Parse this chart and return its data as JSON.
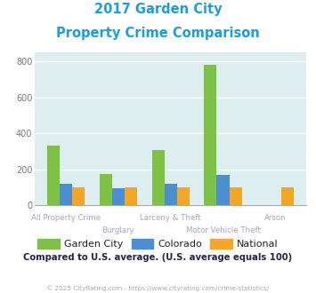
{
  "title_line1": "2017 Garden City",
  "title_line2": "Property Crime Comparison",
  "categories": [
    "All Property Crime",
    "Burglary",
    "Larceny & Theft",
    "Motor Vehicle Theft",
    "Arson"
  ],
  "garden_city": [
    330,
    175,
    308,
    783,
    0
  ],
  "colorado": [
    118,
    95,
    118,
    168,
    0
  ],
  "national": [
    100,
    100,
    100,
    100,
    100
  ],
  "color_garden": "#7dc242",
  "color_colorado": "#4a8fd4",
  "color_national": "#f5a623",
  "bg_color": "#deedf0",
  "title_color": "#1a9ede",
  "axis_label_color": "#b0a0c0",
  "ylim": [
    0,
    850
  ],
  "yticks": [
    0,
    200,
    400,
    600,
    800
  ],
  "subtitle": "Compared to U.S. average. (U.S. average equals 100)",
  "footer": "© 2025 CityRating.com - https://www.cityrating.com/crime-statistics/",
  "footer_link": "https://www.cityrating.com/crime-statistics/",
  "legend_labels": [
    "Garden City",
    "Colorado",
    "National"
  ]
}
